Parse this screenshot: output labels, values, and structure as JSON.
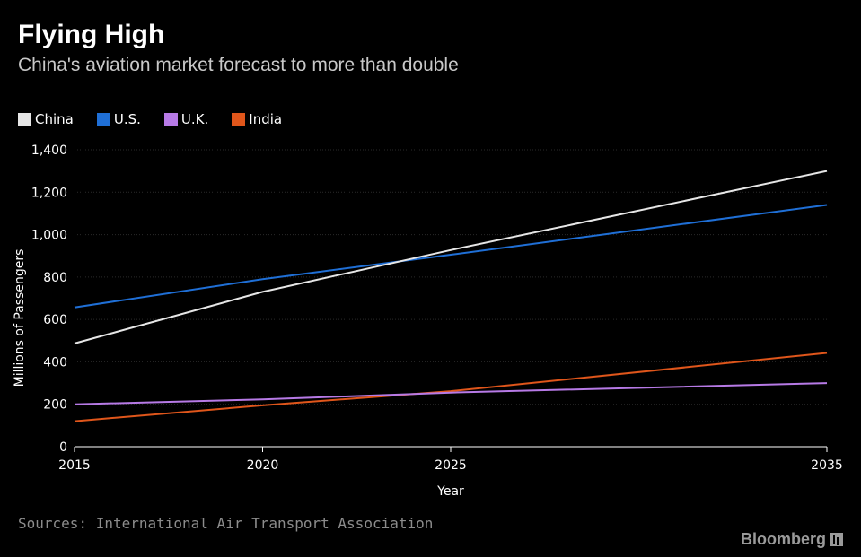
{
  "header": {
    "title": "Flying High",
    "subtitle": "China's aviation market forecast to more than double"
  },
  "footer": {
    "source": "Sources: International Air Transport Association",
    "brand": "Bloomberg"
  },
  "colors": {
    "background": "#000000",
    "gridline": "#2a2a2a",
    "China": "#e6e6e6",
    "U.S.": "#1f6fd6",
    "U.K.": "#b77ae6",
    "India": "#e0561b"
  },
  "chart_data": {
    "type": "line",
    "title": "Flying High",
    "subtitle": "China's aviation market forecast to more than double",
    "xlabel": "Year",
    "ylabel": "Millions of Passengers",
    "x": [
      2015,
      2020,
      2025,
      2035
    ],
    "xticks": [
      "2015",
      "2020",
      "2025",
      "2035"
    ],
    "yticks": [
      "0",
      "200",
      "400",
      "600",
      "800",
      "1,000",
      "1,200",
      "1,400"
    ],
    "ylim": [
      0,
      1400
    ],
    "grid": true,
    "legend_position": "top-left",
    "series": [
      {
        "name": "China",
        "color": "#e6e6e6",
        "values": [
          487,
          730,
          927,
          1300
        ]
      },
      {
        "name": "U.S.",
        "color": "#1f6fd6",
        "values": [
          657,
          790,
          905,
          1140
        ]
      },
      {
        "name": "U.K.",
        "color": "#b77ae6",
        "values": [
          200,
          223,
          255,
          300
        ]
      },
      {
        "name": "India",
        "color": "#e0561b",
        "values": [
          120,
          195,
          262,
          442
        ]
      }
    ]
  }
}
